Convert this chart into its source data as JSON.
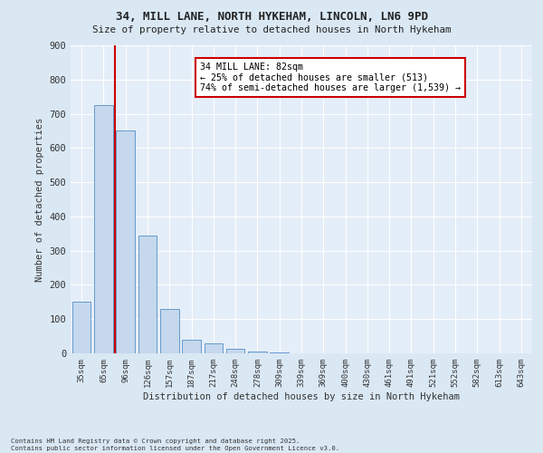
{
  "title1": "34, MILL LANE, NORTH HYKEHAM, LINCOLN, LN6 9PD",
  "title2": "Size of property relative to detached houses in North Hykeham",
  "xlabel": "Distribution of detached houses by size in North Hykeham",
  "ylabel": "Number of detached properties",
  "categories": [
    "35sqm",
    "65sqm",
    "96sqm",
    "126sqm",
    "157sqm",
    "187sqm",
    "217sqm",
    "248sqm",
    "278sqm",
    "309sqm",
    "339sqm",
    "369sqm",
    "400sqm",
    "430sqm",
    "461sqm",
    "491sqm",
    "521sqm",
    "552sqm",
    "582sqm",
    "613sqm",
    "643sqm"
  ],
  "values": [
    150,
    725,
    650,
    345,
    130,
    40,
    30,
    12,
    5,
    3,
    0,
    0,
    0,
    0,
    0,
    0,
    0,
    0,
    0,
    0,
    0
  ],
  "bar_color": "#c5d8ed",
  "bar_edge_color": "#6699cc",
  "vline_x": 1.5,
  "vline_color": "#cc0000",
  "annotation_text": "34 MILL LANE: 82sqm\n← 25% of detached houses are smaller (513)\n74% of semi-detached houses are larger (1,539) →",
  "annotation_box_color": "#cc0000",
  "ylim": [
    0,
    900
  ],
  "yticks": [
    0,
    100,
    200,
    300,
    400,
    500,
    600,
    700,
    800,
    900
  ],
  "footer1": "Contains HM Land Registry data © Crown copyright and database right 2025.",
  "footer2": "Contains public sector information licensed under the Open Government Licence v3.0.",
  "bg_color": "#dae8f4",
  "plot_bg_color": "#e4eef8"
}
